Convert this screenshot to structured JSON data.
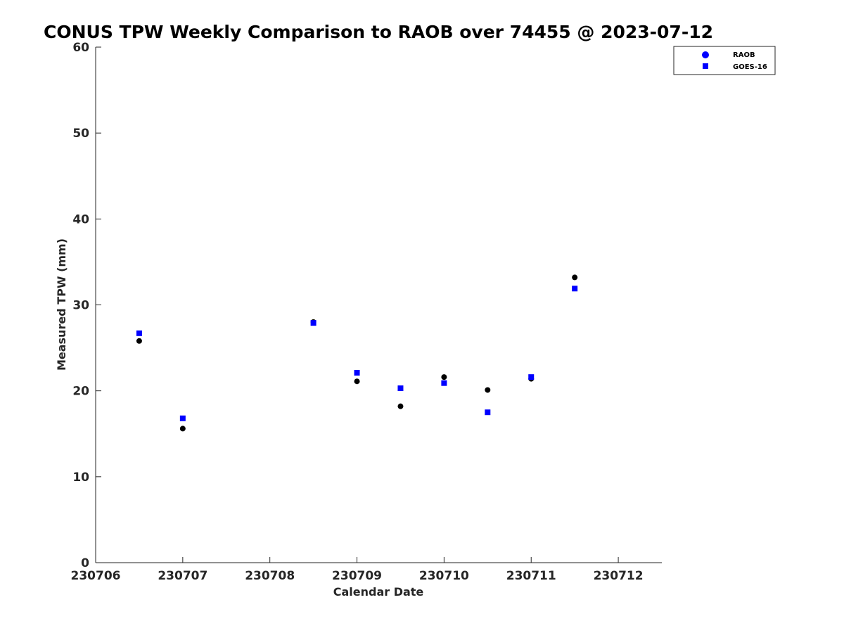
{
  "chart_data": {
    "type": "scatter",
    "title": "CONUS TPW Weekly Comparison to RAOB over 74455 @ 2023-07-12",
    "xlabel": "Calendar Date",
    "ylabel": "Measured TPW (mm)",
    "x_tick_labels": [
      "230706",
      "230707",
      "230708",
      "230709",
      "230710",
      "230711",
      "230712"
    ],
    "x_tick_values": [
      0,
      1,
      2,
      3,
      4,
      5,
      6
    ],
    "xlim": [
      0,
      6.5
    ],
    "y_ticks": [
      0,
      10,
      20,
      30,
      40,
      50,
      60
    ],
    "ylim": [
      0,
      60
    ],
    "grid": false,
    "legend_position": "top-right",
    "series": [
      {
        "name": "RAOB",
        "marker": "circle",
        "color": "#000000",
        "legend_color": "#0000ff",
        "x": [
          0.5,
          1.0,
          2.5,
          3.0,
          3.5,
          4.0,
          4.5,
          5.0,
          5.5
        ],
        "y": [
          25.8,
          15.6,
          28.0,
          21.1,
          18.2,
          21.6,
          20.1,
          21.4,
          33.2
        ]
      },
      {
        "name": "GOES-16",
        "marker": "square",
        "color": "#0000ff",
        "legend_color": "#0000ff",
        "x": [
          0.5,
          1.0,
          2.5,
          3.0,
          3.5,
          4.0,
          4.5,
          5.0,
          5.5
        ],
        "y": [
          26.7,
          16.8,
          27.9,
          22.1,
          20.3,
          20.9,
          17.5,
          21.6,
          31.9
        ]
      }
    ]
  }
}
